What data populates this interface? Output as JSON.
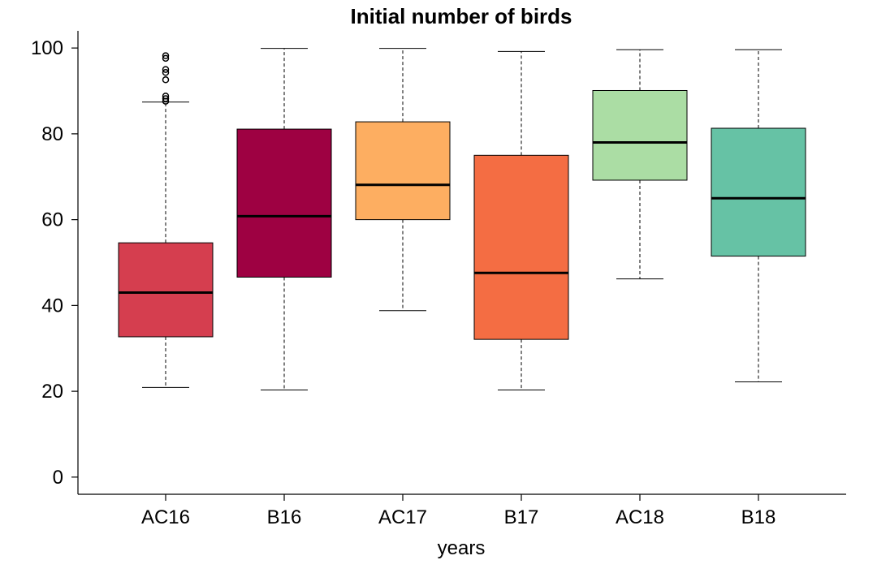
{
  "chart_data": {
    "type": "boxplot",
    "title": "Initial number of birds",
    "xlabel": "years",
    "ylabel": "",
    "ylim": [
      -4,
      104
    ],
    "yticks": [
      0,
      20,
      40,
      60,
      80,
      100
    ],
    "grid": false,
    "legend": "none",
    "categories": [
      "AC16",
      "B16",
      "AC17",
      "B17",
      "AC18",
      "B18"
    ],
    "colors": [
      "#D53E4F",
      "#9E0142",
      "#FDAE61",
      "#F46D43",
      "#ABDDA4",
      "#66C2A5"
    ],
    "boxes": [
      {
        "label": "AC16",
        "whisker_low": 20.9,
        "q1": 32.7,
        "median": 43.0,
        "q3": 54.6,
        "whisker_high": 87.4,
        "outliers": [
          87.6,
          88.2,
          88.8,
          92.6,
          94.3,
          95.0,
          97.6,
          98.2
        ]
      },
      {
        "label": "B16",
        "whisker_low": 20.3,
        "q1": 46.6,
        "median": 60.8,
        "q3": 81.1,
        "whisker_high": 99.9,
        "outliers": []
      },
      {
        "label": "AC17",
        "whisker_low": 38.8,
        "q1": 60.0,
        "median": 68.1,
        "q3": 82.8,
        "whisker_high": 99.9,
        "outliers": []
      },
      {
        "label": "B17",
        "whisker_low": 20.3,
        "q1": 32.1,
        "median": 47.6,
        "q3": 75.0,
        "whisker_high": 99.2,
        "outliers": []
      },
      {
        "label": "AC18",
        "whisker_low": 46.2,
        "q1": 69.2,
        "median": 78.0,
        "q3": 90.1,
        "whisker_high": 99.6,
        "outliers": []
      },
      {
        "label": "B18",
        "whisker_low": 22.2,
        "q1": 51.5,
        "median": 65.0,
        "q3": 81.3,
        "whisker_high": 99.6,
        "outliers": []
      }
    ]
  }
}
